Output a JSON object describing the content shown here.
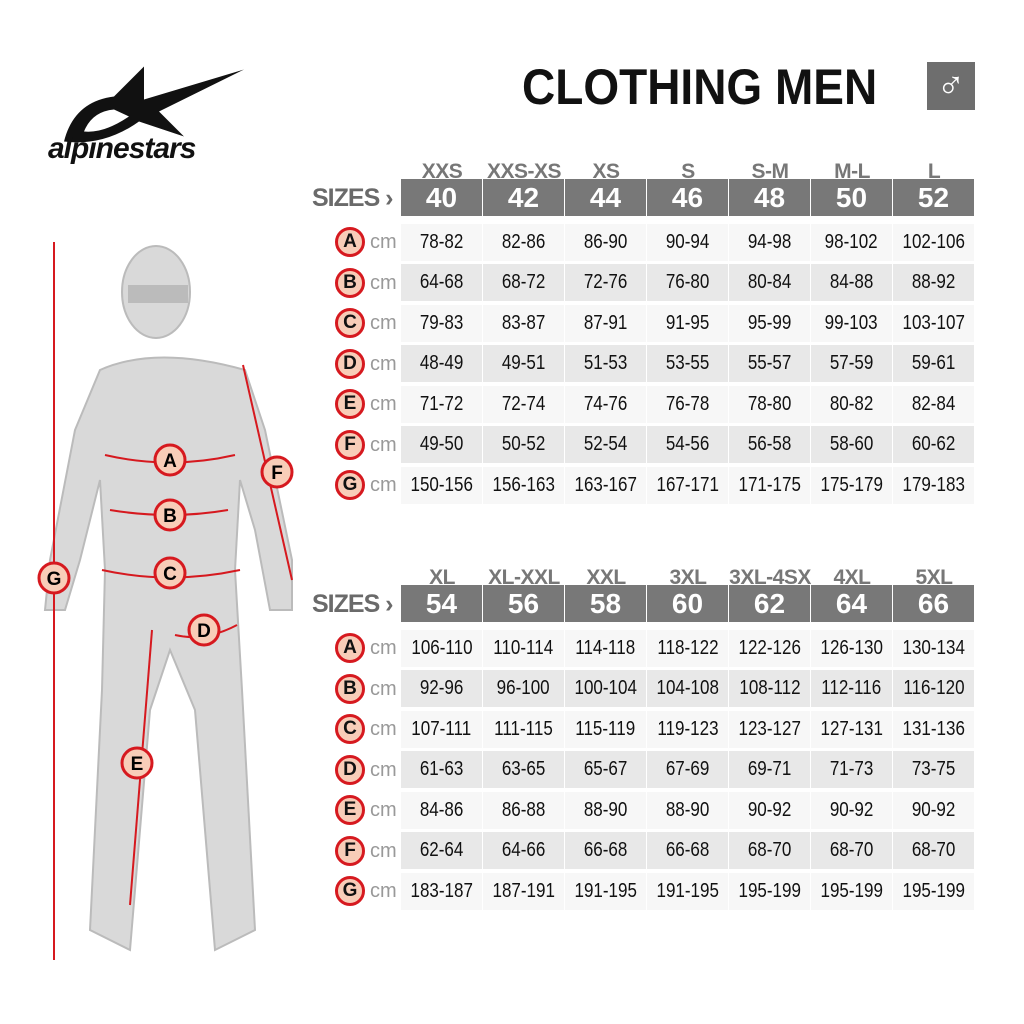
{
  "brand": {
    "name": "alpinestars"
  },
  "header": {
    "title": "CLOTHING MEN",
    "gender_icon": "male-symbol",
    "gender_symbol": "♂"
  },
  "sizes_label": "SIZES ›",
  "unit": "cm",
  "measure_letters": [
    "A",
    "B",
    "C",
    "D",
    "E",
    "F",
    "G"
  ],
  "figure_markers": [
    "A",
    "B",
    "C",
    "D",
    "E",
    "F",
    "G"
  ],
  "accent_color": "#d6191f",
  "tables": [
    {
      "letter_sizes": [
        "XXS",
        "XXS-XS",
        "XS",
        "S",
        "S-M",
        "M-L",
        "L"
      ],
      "numeric_sizes": [
        "40",
        "42",
        "44",
        "46",
        "48",
        "50",
        "52"
      ],
      "rows": [
        [
          "78-82",
          "82-86",
          "86-90",
          "90-94",
          "94-98",
          "98-102",
          "102-106"
        ],
        [
          "64-68",
          "68-72",
          "72-76",
          "76-80",
          "80-84",
          "84-88",
          "88-92"
        ],
        [
          "79-83",
          "83-87",
          "87-91",
          "91-95",
          "95-99",
          "99-103",
          "103-107"
        ],
        [
          "48-49",
          "49-51",
          "51-53",
          "53-55",
          "55-57",
          "57-59",
          "59-61"
        ],
        [
          "71-72",
          "72-74",
          "74-76",
          "76-78",
          "78-80",
          "80-82",
          "82-84"
        ],
        [
          "49-50",
          "50-52",
          "52-54",
          "54-56",
          "56-58",
          "58-60",
          "60-62"
        ],
        [
          "150-156",
          "156-163",
          "163-167",
          "167-171",
          "171-175",
          "175-179",
          "179-183"
        ]
      ]
    },
    {
      "letter_sizes": [
        "XL",
        "XL-XXL",
        "XXL",
        "3XL",
        "3XL-4SX",
        "4XL",
        "5XL"
      ],
      "numeric_sizes": [
        "54",
        "56",
        "58",
        "60",
        "62",
        "64",
        "66"
      ],
      "rows": [
        [
          "106-110",
          "110-114",
          "114-118",
          "118-122",
          "122-126",
          "126-130",
          "130-134"
        ],
        [
          "92-96",
          "96-100",
          "100-104",
          "104-108",
          "108-112",
          "112-116",
          "116-120"
        ],
        [
          "107-111",
          "111-115",
          "115-119",
          "119-123",
          "123-127",
          "127-131",
          "131-136"
        ],
        [
          "61-63",
          "63-65",
          "65-67",
          "67-69",
          "69-71",
          "71-73",
          "73-75"
        ],
        [
          "84-86",
          "86-88",
          "88-90",
          "88-90",
          "90-92",
          "90-92",
          "90-92"
        ],
        [
          "62-64",
          "64-66",
          "66-68",
          "66-68",
          "68-70",
          "68-70",
          "68-70"
        ],
        [
          "183-187",
          "187-191",
          "191-195",
          "191-195",
          "195-199",
          "195-199",
          "195-199"
        ]
      ]
    }
  ]
}
